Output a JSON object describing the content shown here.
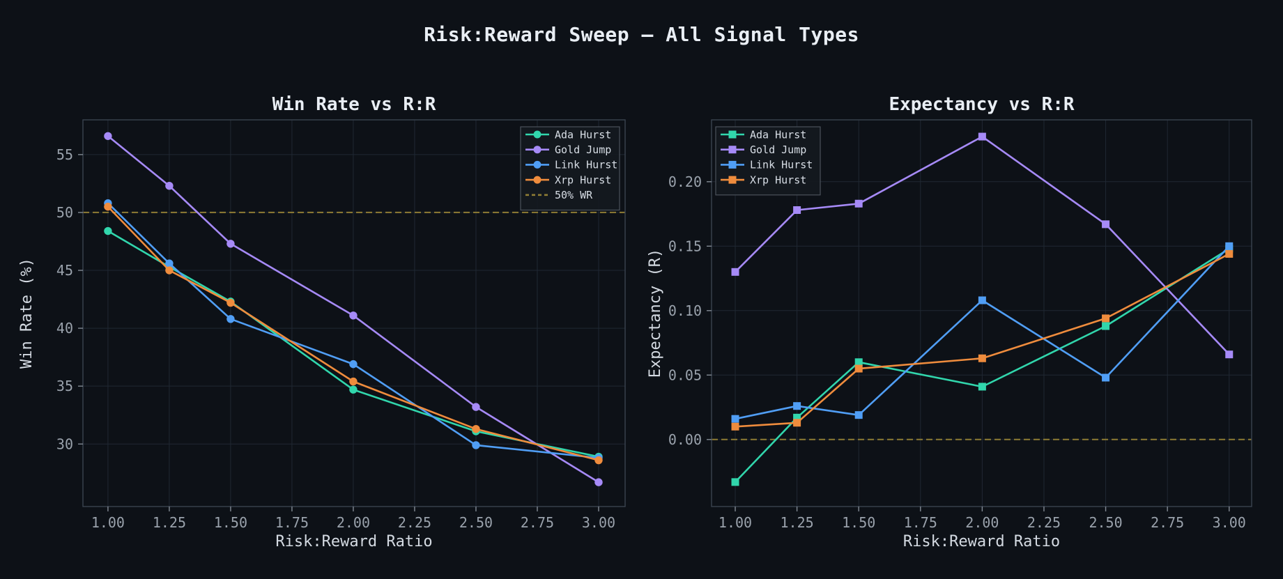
{
  "figure": {
    "title": "Risk:Reward Sweep — All Signal Types",
    "background": "#0d1117"
  },
  "palette": {
    "ada": "#31d6ac",
    "gold": "#a68af7",
    "link": "#509ef5",
    "xrp": "#ef8c3d",
    "ref_dashed": "#8e7c34",
    "grid": "#202833",
    "spine": "#3b4350",
    "tick_mark": "#828a94",
    "tick_label": "#9aa2ac",
    "axis_label": "#d4dae2",
    "title_text": "#e9eef4",
    "legend_bg": "#141920",
    "legend_border": "#4b525b",
    "legend_text": "#d8dee6"
  },
  "chart_data": [
    {
      "id": "win-rate",
      "type": "line",
      "title": "Win Rate vs R:R",
      "xlabel": "Risk:Reward Ratio",
      "ylabel": "Win Rate (%)",
      "marker": "circle",
      "grid": true,
      "legend_position": "top-right",
      "x": [
        1.0,
        1.25,
        1.5,
        2.0,
        2.5,
        3.0
      ],
      "xlim": [
        0.898,
        3.108
      ],
      "ylim": [
        24.6,
        58.0
      ],
      "xtick_values": [
        1.0,
        1.25,
        1.5,
        1.75,
        2.0,
        2.25,
        2.5,
        2.75,
        3.0
      ],
      "xtick_labels": [
        "1.00",
        "1.25",
        "1.50",
        "1.75",
        "2.00",
        "2.25",
        "2.50",
        "2.75",
        "3.00"
      ],
      "ytick_values": [
        30,
        35,
        40,
        45,
        50,
        55
      ],
      "ytick_labels": [
        "30",
        "35",
        "40",
        "45",
        "50",
        "55"
      ],
      "series": [
        {
          "name": "Ada Hurst",
          "color": "#31d6ac",
          "values": [
            48.4,
            45.3,
            42.3,
            34.7,
            31.1,
            28.9
          ]
        },
        {
          "name": "Gold Jump",
          "color": "#a68af7",
          "values": [
            56.6,
            52.3,
            47.3,
            41.1,
            33.2,
            26.7
          ]
        },
        {
          "name": "Link Hurst",
          "color": "#509ef5",
          "values": [
            50.8,
            45.6,
            40.8,
            36.9,
            29.9,
            28.8
          ]
        },
        {
          "name": "Xrp Hurst",
          "color": "#ef8c3d",
          "values": [
            50.5,
            45.0,
            42.2,
            35.4,
            31.3,
            28.6
          ]
        }
      ],
      "ref_line": {
        "label": "50% WR",
        "value": 50,
        "color": "#8e7c34",
        "style": "dashed",
        "in_legend": true
      }
    },
    {
      "id": "expectancy",
      "type": "line",
      "title": "Expectancy vs R:R",
      "xlabel": "Risk:Reward Ratio",
      "ylabel": "Expectancy (R)",
      "marker": "square",
      "grid": true,
      "legend_position": "top-left",
      "x": [
        1.0,
        1.25,
        1.5,
        2.0,
        2.5,
        3.0
      ],
      "xlim": [
        0.904,
        3.091
      ],
      "ylim": [
        -0.052,
        0.248
      ],
      "xtick_values": [
        1.0,
        1.25,
        1.5,
        1.75,
        2.0,
        2.25,
        2.5,
        2.75,
        3.0
      ],
      "xtick_labels": [
        "1.00",
        "1.25",
        "1.50",
        "1.75",
        "2.00",
        "2.25",
        "2.50",
        "2.75",
        "3.00"
      ],
      "ytick_values": [
        0.0,
        0.05,
        0.1,
        0.15,
        0.2
      ],
      "ytick_labels": [
        "0.00",
        "0.05",
        "0.10",
        "0.15",
        "0.20"
      ],
      "series": [
        {
          "name": "Ada Hurst",
          "color": "#31d6ac",
          "values": [
            -0.033,
            0.017,
            0.06,
            0.041,
            0.088,
            0.148
          ]
        },
        {
          "name": "Gold Jump",
          "color": "#a68af7",
          "values": [
            0.13,
            0.178,
            0.183,
            0.235,
            0.167,
            0.066
          ]
        },
        {
          "name": "Link Hurst",
          "color": "#509ef5",
          "values": [
            0.016,
            0.026,
            0.019,
            0.108,
            0.048,
            0.15
          ]
        },
        {
          "name": "Xrp Hurst",
          "color": "#ef8c3d",
          "values": [
            0.01,
            0.013,
            0.055,
            0.063,
            0.094,
            0.144
          ]
        }
      ],
      "ref_line": {
        "label": "",
        "value": 0.0,
        "color": "#8e7c34",
        "style": "dashed",
        "in_legend": false
      }
    }
  ]
}
